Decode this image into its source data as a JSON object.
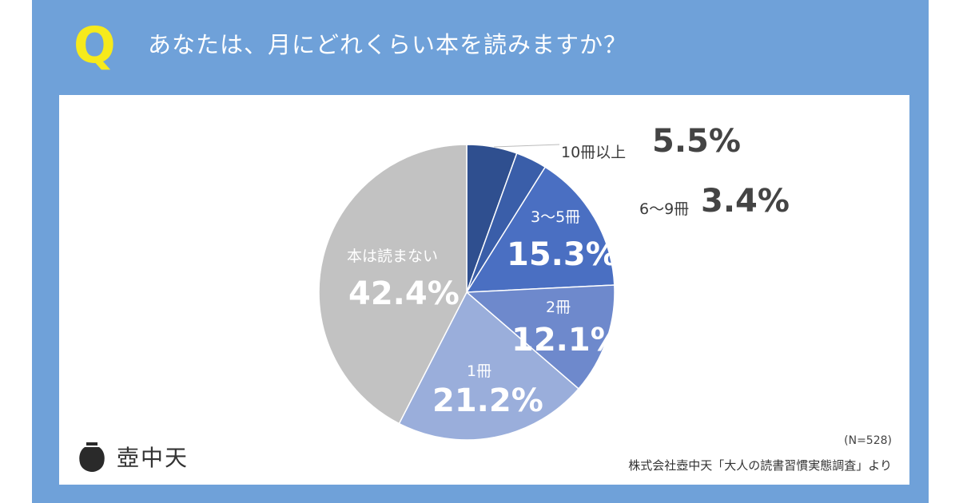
{
  "header": {
    "q_mark": "Q",
    "question": "あなたは、月にどれくらい本を読みますか？"
  },
  "colors": {
    "frame": "#6fa1d9",
    "q_mark": "#f6ea1c"
  },
  "chart_data": {
    "type": "pie",
    "start_angle_deg": 0,
    "direction": "clockwise",
    "slices": [
      {
        "label": "10冊以上",
        "value": 5.5,
        "value_label": "5.5%",
        "color": "#2f4f8f"
      },
      {
        "label": "6〜9冊",
        "value": 3.4,
        "value_label": "3.4%",
        "color": "#3a5ea9"
      },
      {
        "label": "3〜5冊",
        "value": 15.3,
        "value_label": "15.3%",
        "color": "#4a6fc2"
      },
      {
        "label": "2冊",
        "value": 12.1,
        "value_label": "12.1%",
        "color": "#6e89cc"
      },
      {
        "label": "1冊",
        "value": 21.2,
        "value_label": "21.2%",
        "color": "#9aaedb"
      },
      {
        "label": "本は読まない",
        "value": 42.4,
        "value_label": "42.4%",
        "color": "#c2c2c2"
      }
    ]
  },
  "footer": {
    "logo_text": "壺中天",
    "n_note": "(N=528)",
    "source": "株式会社壺中天「大人の読書習慣実態調査」より"
  }
}
